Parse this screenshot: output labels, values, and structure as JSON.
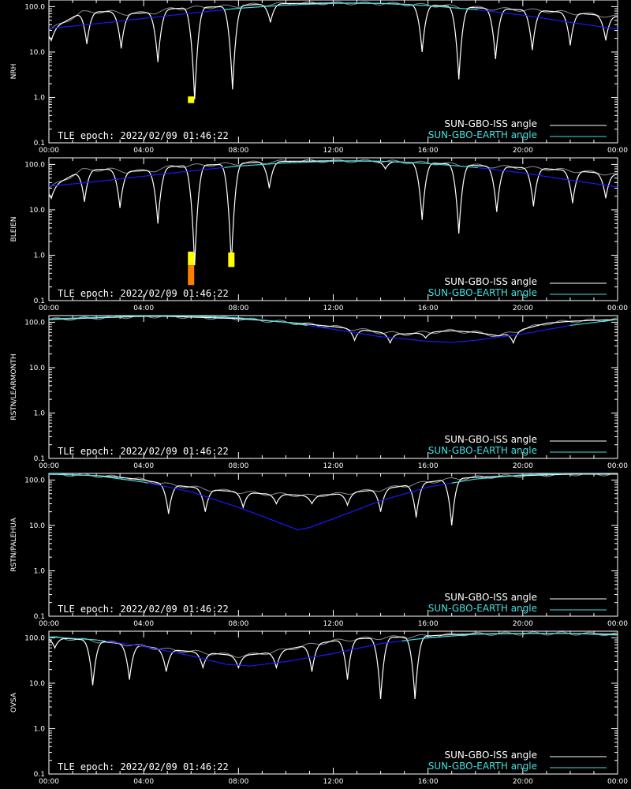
{
  "figure": {
    "epoch_label": "TLE epoch: 2022/02/09 01:46:22",
    "legend": {
      "iss": {
        "label": "SUN-GBO-ISS angle",
        "color": "#ffffff"
      },
      "earth": {
        "label": "SUN-GBO-EARTH angle",
        "color": "#40e0e0"
      }
    },
    "colors": {
      "background": "#000000",
      "axes": "#ffffff",
      "iss_curve": "#ffffff",
      "earth_curve_low": "#1a1aff",
      "earth_curve_high": "#40e0e0",
      "iss_ghost": "#8a8a8a",
      "marker_yellow": "#ffff00",
      "marker_orange": "#ff7f00"
    },
    "x_tick_labels": [
      "00:00",
      "04:00",
      "08:00",
      "12:00",
      "16:00",
      "20:00",
      "00:00"
    ],
    "y_tick_labels": [
      "100.0",
      "10.0",
      "1.0",
      "0.1"
    ]
  },
  "chart_data": [
    {
      "type": "line",
      "ylabel": "NRH",
      "xlim": [
        0,
        24
      ],
      "ylim": [
        0.1,
        140
      ],
      "yscale": "log",
      "x_unit": "hours UT",
      "series": [
        {
          "name": "SUN-GBO-ISS angle",
          "points": [
            [
              0,
              30
            ],
            [
              1.4,
              75
            ],
            [
              2.5,
              78
            ],
            [
              3.3,
              70
            ],
            [
              4.5,
              75
            ],
            [
              5.2,
              90
            ],
            [
              6.1,
              95
            ],
            [
              7.3,
              100
            ],
            [
              8.6,
              110
            ],
            [
              10,
              117
            ],
            [
              12,
              120
            ],
            [
              14,
              118
            ],
            [
              15.5,
              110
            ],
            [
              16.5,
              105
            ],
            [
              17.6,
              97
            ],
            [
              18.8,
              90
            ],
            [
              20,
              85
            ],
            [
              21,
              80
            ],
            [
              22.5,
              70
            ],
            [
              24,
              60
            ]
          ],
          "dips": [
            [
              0.1,
              18
            ],
            [
              1.6,
              15
            ],
            [
              3.05,
              12
            ],
            [
              4.6,
              6
            ],
            [
              6.15,
              0.9
            ],
            [
              7.75,
              1.5
            ],
            [
              9.35,
              45
            ],
            [
              15.75,
              10
            ],
            [
              17.3,
              2.5
            ],
            [
              18.85,
              7
            ],
            [
              20.4,
              11
            ],
            [
              22,
              14
            ],
            [
              23.5,
              18
            ]
          ]
        },
        {
          "name": "SUN-GBO-EARTH angle",
          "points": [
            [
              0,
              33
            ],
            [
              2,
              42
            ],
            [
              4,
              55
            ],
            [
              6,
              72
            ],
            [
              8,
              92
            ],
            [
              10,
              108
            ],
            [
              12,
              118
            ],
            [
              13,
              120
            ],
            [
              14,
              118
            ],
            [
              16,
              105
            ],
            [
              18,
              86
            ],
            [
              20,
              65
            ],
            [
              22,
              45
            ],
            [
              24,
              32
            ]
          ]
        }
      ],
      "markers": [
        {
          "x": 6.0,
          "ymin": 0.75,
          "ymax": 1.05,
          "color": "yellow"
        }
      ]
    },
    {
      "type": "line",
      "ylabel": "BLEIEN",
      "xlim": [
        0,
        24
      ],
      "ylim": [
        0.1,
        140
      ],
      "yscale": "log",
      "x_unit": "hours UT",
      "series": [
        {
          "name": "SUN-GBO-ISS angle",
          "points": [
            [
              0,
              30
            ],
            [
              1.4,
              75
            ],
            [
              2.5,
              78
            ],
            [
              3.3,
              70
            ],
            [
              4.5,
              75
            ],
            [
              5.2,
              90
            ],
            [
              6.1,
              95
            ],
            [
              7.3,
              100
            ],
            [
              8.6,
              110
            ],
            [
              10,
              117
            ],
            [
              12,
              120
            ],
            [
              14,
              118
            ],
            [
              15.5,
              110
            ],
            [
              16.5,
              105
            ],
            [
              17.6,
              97
            ],
            [
              18.8,
              90
            ],
            [
              20,
              85
            ],
            [
              21,
              80
            ],
            [
              22.5,
              70
            ],
            [
              24,
              60
            ]
          ],
          "dips": [
            [
              0.1,
              18
            ],
            [
              1.5,
              15
            ],
            [
              3.0,
              11
            ],
            [
              4.6,
              5
            ],
            [
              6.15,
              0.6
            ],
            [
              7.7,
              0.6
            ],
            [
              9.3,
              30
            ],
            [
              14.2,
              80
            ],
            [
              15.75,
              6
            ],
            [
              17.3,
              3
            ],
            [
              18.9,
              9
            ],
            [
              20.45,
              12
            ],
            [
              22.1,
              14
            ],
            [
              23.5,
              18
            ]
          ]
        },
        {
          "name": "SUN-GBO-EARTH angle",
          "points": [
            [
              0,
              33
            ],
            [
              2,
              42
            ],
            [
              4,
              55
            ],
            [
              6,
              72
            ],
            [
              8,
              92
            ],
            [
              10,
              108
            ],
            [
              12,
              118
            ],
            [
              13,
              120
            ],
            [
              14,
              118
            ],
            [
              16,
              105
            ],
            [
              18,
              86
            ],
            [
              20,
              65
            ],
            [
              22,
              45
            ],
            [
              24,
              32
            ]
          ]
        }
      ],
      "markers": [
        {
          "x": 6.0,
          "ymin": 0.6,
          "ymax": 1.2,
          "color": "yellow"
        },
        {
          "x": 6.0,
          "ymin": 0.22,
          "ymax": 0.6,
          "color": "orange"
        },
        {
          "x": 7.7,
          "ymin": 0.55,
          "ymax": 1.15,
          "color": "yellow"
        }
      ]
    },
    {
      "type": "line",
      "ylabel": "RSTN/LEARMONTH",
      "xlim": [
        0,
        24
      ],
      "ylim": [
        0.1,
        140
      ],
      "yscale": "log",
      "x_unit": "hours UT",
      "series": [
        {
          "name": "SUN-GBO-ISS angle",
          "points": [
            [
              0,
              115
            ],
            [
              1,
              120
            ],
            [
              2,
              125
            ],
            [
              3,
              130
            ],
            [
              4,
              135
            ],
            [
              5,
              135
            ],
            [
              6,
              130
            ],
            [
              7,
              125
            ],
            [
              8,
              120
            ],
            [
              9,
              110
            ],
            [
              10,
              100
            ],
            [
              11,
              90
            ],
            [
              12,
              80
            ],
            [
              13,
              70
            ],
            [
              14,
              60
            ],
            [
              15,
              55
            ],
            [
              16,
              60
            ],
            [
              17,
              65
            ],
            [
              18,
              60
            ],
            [
              19,
              50
            ],
            [
              20,
              70
            ],
            [
              21,
              95
            ],
            [
              22,
              105
            ],
            [
              23,
              110
            ],
            [
              24,
              115
            ]
          ],
          "dips": [
            [
              12.9,
              40
            ],
            [
              14.4,
              35
            ],
            [
              15.9,
              45
            ],
            [
              19.6,
              35
            ]
          ]
        },
        {
          "name": "SUN-GBO-EARTH angle",
          "points": [
            [
              0,
              118
            ],
            [
              2,
              128
            ],
            [
              4,
              138
            ],
            [
              6,
              138
            ],
            [
              8,
              125
            ],
            [
              10,
              100
            ],
            [
              12,
              70
            ],
            [
              14,
              48
            ],
            [
              16,
              38
            ],
            [
              17,
              36
            ],
            [
              18,
              40
            ],
            [
              20,
              55
            ],
            [
              22,
              85
            ],
            [
              24,
              115
            ]
          ]
        }
      ],
      "markers": []
    },
    {
      "type": "line",
      "ylabel": "RSTN/PALEHUA",
      "xlim": [
        0,
        24
      ],
      "ylim": [
        0.1,
        140
      ],
      "yscale": "log",
      "x_unit": "hours UT",
      "series": [
        {
          "name": "SUN-GBO-ISS angle",
          "points": [
            [
              0,
              135
            ],
            [
              1,
              130
            ],
            [
              2,
              125
            ],
            [
              3,
              115
            ],
            [
              4,
              100
            ],
            [
              5,
              80
            ],
            [
              6,
              70
            ],
            [
              7,
              60
            ],
            [
              8,
              55
            ],
            [
              9,
              50
            ],
            [
              10,
              48
            ],
            [
              11,
              45
            ],
            [
              12,
              48
            ],
            [
              13,
              55
            ],
            [
              14,
              62
            ],
            [
              15,
              75
            ],
            [
              16,
              90
            ],
            [
              17,
              105
            ],
            [
              18,
              115
            ],
            [
              19,
              120
            ],
            [
              20,
              125
            ],
            [
              21,
              130
            ],
            [
              22,
              135
            ],
            [
              24,
              135
            ]
          ],
          "dips": [
            [
              5.05,
              18
            ],
            [
              6.6,
              20
            ],
            [
              8.2,
              25
            ],
            [
              9.6,
              30
            ],
            [
              11.1,
              30
            ],
            [
              12.6,
              28
            ],
            [
              14.0,
              20
            ],
            [
              15.5,
              15
            ],
            [
              17.0,
              10
            ]
          ]
        },
        {
          "name": "SUN-GBO-EARTH angle",
          "points": [
            [
              0,
              138
            ],
            [
              2,
              125
            ],
            [
              4,
              90
            ],
            [
              6,
              55
            ],
            [
              8,
              25
            ],
            [
              9,
              16
            ],
            [
              10.5,
              8
            ],
            [
              11,
              9
            ],
            [
              12,
              14
            ],
            [
              14,
              35
            ],
            [
              16,
              70
            ],
            [
              18,
              105
            ],
            [
              20,
              130
            ],
            [
              22,
              140
            ],
            [
              24,
              140
            ]
          ]
        }
      ],
      "markers": []
    },
    {
      "type": "line",
      "ylabel": "OVSA",
      "xlim": [
        0,
        24
      ],
      "ylim": [
        0.1,
        140
      ],
      "yscale": "log",
      "x_unit": "hours UT",
      "series": [
        {
          "name": "SUN-GBO-ISS angle",
          "points": [
            [
              0,
              100
            ],
            [
              1,
              95
            ],
            [
              2,
              85
            ],
            [
              3,
              75
            ],
            [
              4,
              65
            ],
            [
              5,
              55
            ],
            [
              6,
              50
            ],
            [
              7,
              45
            ],
            [
              8,
              40
            ],
            [
              9,
              45
            ],
            [
              10,
              55
            ],
            [
              11,
              70
            ],
            [
              12,
              85
            ],
            [
              13,
              95
            ],
            [
              14,
              100
            ],
            [
              15,
              105
            ],
            [
              16,
              110
            ],
            [
              17,
              118
            ],
            [
              18,
              122
            ],
            [
              20,
              125
            ],
            [
              22,
              125
            ],
            [
              24,
              120
            ]
          ],
          "dips": [
            [
              0.25,
              60
            ],
            [
              1.85,
              9
            ],
            [
              3.4,
              12
            ],
            [
              4.95,
              18
            ],
            [
              6.5,
              22
            ],
            [
              8.0,
              22
            ],
            [
              9.6,
              22
            ],
            [
              11.1,
              18
            ],
            [
              12.6,
              12
            ],
            [
              14.0,
              4.5
            ],
            [
              15.45,
              4.5
            ]
          ]
        },
        {
          "name": "SUN-GBO-EARTH angle",
          "points": [
            [
              0,
              105
            ],
            [
              2,
              90
            ],
            [
              4,
              65
            ],
            [
              6,
              40
            ],
            [
              7.5,
              26
            ],
            [
              8.5,
              24
            ],
            [
              10,
              30
            ],
            [
              12,
              45
            ],
            [
              14,
              75
            ],
            [
              16,
              100
            ],
            [
              18,
              120
            ],
            [
              20,
              125
            ],
            [
              22,
              125
            ],
            [
              24,
              115
            ]
          ]
        }
      ],
      "markers": []
    }
  ]
}
